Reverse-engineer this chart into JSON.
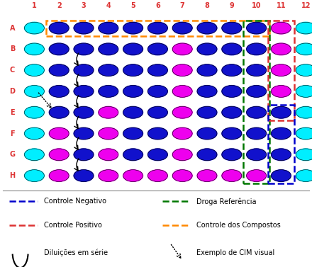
{
  "rows": [
    "A",
    "B",
    "C",
    "D",
    "E",
    "F",
    "G",
    "H"
  ],
  "cols": [
    "1",
    "2",
    "3",
    "4",
    "5",
    "6",
    "7",
    "8",
    "9",
    "10",
    "11",
    "12"
  ],
  "cyan": "#00EEFF",
  "blue": "#1111CC",
  "magenta": "#EE00EE",
  "col_label_color": "#DD3333",
  "row_label_color": "#DD3333",
  "bg_color": "#FFFFFF",
  "grid_colors": [
    [
      "C",
      "B",
      "B",
      "B",
      "B",
      "B",
      "B",
      "B",
      "B",
      "B",
      "M",
      "C"
    ],
    [
      "C",
      "B",
      "B",
      "B",
      "B",
      "B",
      "M",
      "B",
      "B",
      "B",
      "M",
      "C"
    ],
    [
      "C",
      "B",
      "B",
      "B",
      "B",
      "B",
      "M",
      "B",
      "B",
      "B",
      "M",
      "C"
    ],
    [
      "C",
      "B",
      "B",
      "B",
      "B",
      "B",
      "M",
      "B",
      "B",
      "B",
      "M",
      "C"
    ],
    [
      "C",
      "B",
      "B",
      "M",
      "B",
      "B",
      "M",
      "B",
      "B",
      "B",
      "B",
      "C"
    ],
    [
      "C",
      "M",
      "B",
      "M",
      "B",
      "B",
      "M",
      "B",
      "B",
      "B",
      "B",
      "C"
    ],
    [
      "C",
      "M",
      "B",
      "M",
      "B",
      "B",
      "M",
      "B",
      "B",
      "B",
      "B",
      "C"
    ],
    [
      "C",
      "M",
      "B",
      "M",
      "M",
      "M",
      "M",
      "M",
      "M",
      "M",
      "B",
      "C"
    ]
  ],
  "orange_color": "#FF8800",
  "green_color": "#007700",
  "red_color": "#DD3333",
  "blue_box_color": "#0000CC"
}
